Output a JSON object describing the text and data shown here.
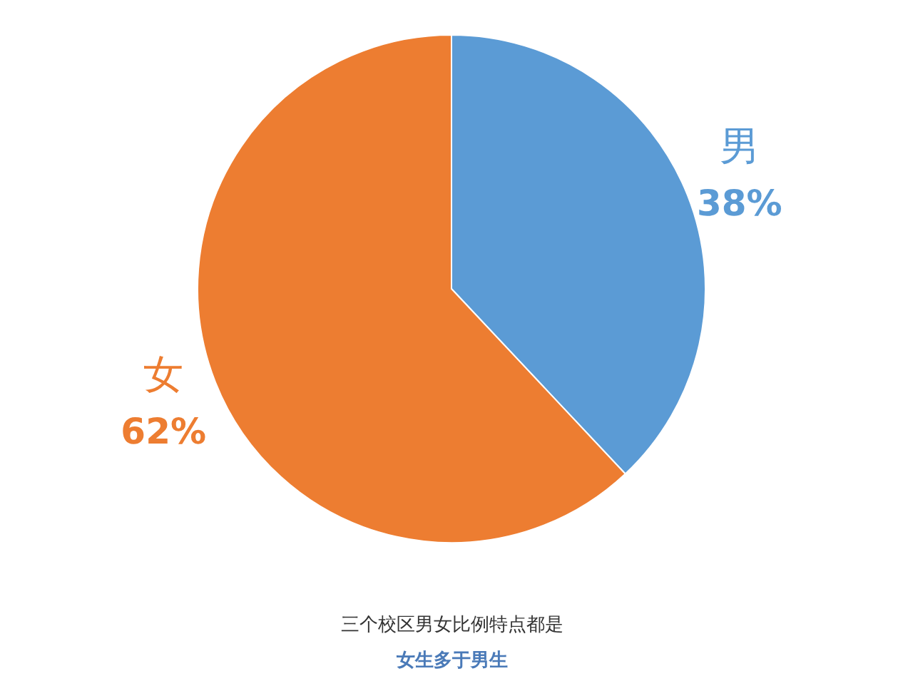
{
  "chart_data": {
    "type": "pie",
    "categories": [
      "男",
      "女"
    ],
    "values": [
      38,
      62
    ],
    "colors": [
      "#5b9bd5",
      "#ed7d31"
    ],
    "value_labels": [
      "38%",
      "62%"
    ],
    "annotations": [
      "三个校区男女比例特点都是",
      "女生多于男生"
    ],
    "legend": false
  }
}
